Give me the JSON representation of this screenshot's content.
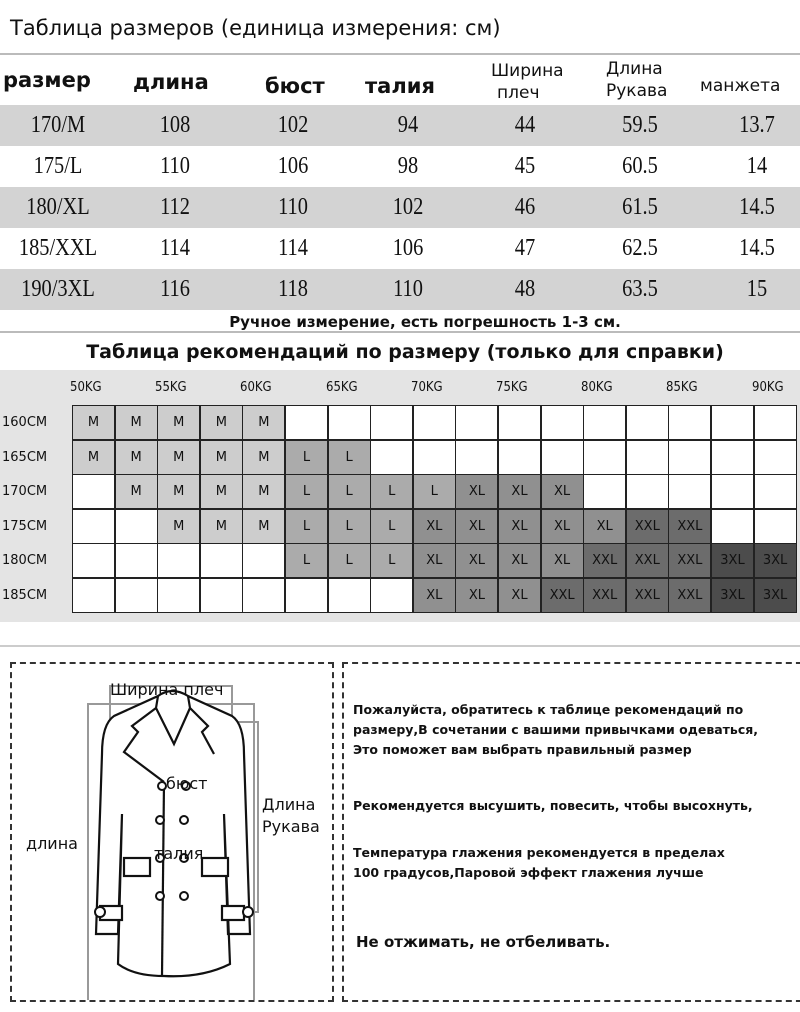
{
  "size_table": {
    "title": "Таблица размеров (единица измерения: см)",
    "headers": [
      "размер",
      "длина",
      "бюст",
      "талия",
      "Ширина плеч",
      "Длина Рукава",
      "манжета"
    ],
    "header_lines": {
      "shoulder": [
        "Ширина",
        "плеч"
      ],
      "sleeve": [
        "Длина",
        "Рукава"
      ]
    },
    "rows": [
      [
        "170/M",
        "108",
        "102",
        "94",
        "44",
        "59.5",
        "13.7"
      ],
      [
        "175/L",
        "110",
        "106",
        "98",
        "45",
        "60.5",
        "14"
      ],
      [
        "180/XL",
        "112",
        "110",
        "102",
        "46",
        "61.5",
        "14.5"
      ],
      [
        "185/XXL",
        "114",
        "114",
        "106",
        "47",
        "62.5",
        "14.5"
      ],
      [
        "190/3XL",
        "116",
        "118",
        "110",
        "48",
        "63.5",
        "15"
      ]
    ],
    "note": "Ручное измерение, есть погрешность 1-3 см."
  },
  "recommendation": {
    "title": "Таблица рекомендаций по размеру (только для справки)",
    "weights": [
      "50KG",
      "55KG",
      "60KG",
      "65KG",
      "70KG",
      "75KG",
      "80KG",
      "85KG",
      "90KG"
    ],
    "heights": [
      "160CM",
      "165CM",
      "170CM",
      "175CM",
      "180CM",
      "185CM"
    ],
    "grid": [
      [
        "M",
        "M",
        "M",
        "M",
        "M",
        "",
        "",
        "",
        "",
        "",
        "",
        "",
        "",
        "",
        "",
        "",
        ""
      ],
      [
        "M",
        "M",
        "M",
        "M",
        "M",
        "L",
        "L",
        "",
        "",
        "",
        "",
        "",
        "",
        "",
        "",
        "",
        ""
      ],
      [
        "",
        "M",
        "M",
        "M",
        "M",
        "L",
        "L",
        "L",
        "L",
        "XL",
        "XL",
        "XL",
        "",
        "",
        "",
        "",
        ""
      ],
      [
        "",
        "",
        "M",
        "M",
        "M",
        "L",
        "L",
        "L",
        "XL",
        "XL",
        "XL",
        "XL",
        "XL",
        "XXL",
        "XXL",
        "",
        ""
      ],
      [
        "",
        "",
        "",
        "",
        "",
        "L",
        "L",
        "L",
        "XL",
        "XL",
        "XL",
        "XL",
        "XXL",
        "XXL",
        "XXL",
        "3XL",
        "3XL"
      ],
      [
        "",
        "",
        "",
        "",
        "",
        "",
        "",
        "",
        "XL",
        "XL",
        "XL",
        "XXL",
        "XXL",
        "XXL",
        "XXL",
        "3XL",
        "3XL"
      ]
    ],
    "colors": {
      "M": "#cdcdcd",
      "L": "#ababab",
      "XL": "#909090",
      "XXL": "#6c6c6c",
      "3XL": "#4c4c4c",
      "empty": "#ffffff"
    }
  },
  "diagram": {
    "labels": {
      "shoulder": "Ширина плеч",
      "bust": "бюст",
      "sleeve": [
        "Длина",
        "Рукава"
      ],
      "length": "длина",
      "waist": "талия"
    }
  },
  "care": {
    "lines": [
      "Пожалуйста, обратитесь к таблице рекомендаций по",
      "размеру,В сочетании с вашими привычками одеваться,",
      "Это поможет вам выбрать правильный размер",
      "Рекомендуется высушить, повесить, чтобы высохнуть,",
      "Температура глажения рекомендуется в пределах",
      "100 градусов,Паровой эффект глажения лучше",
      "Не отжимать, не отбеливать."
    ]
  }
}
